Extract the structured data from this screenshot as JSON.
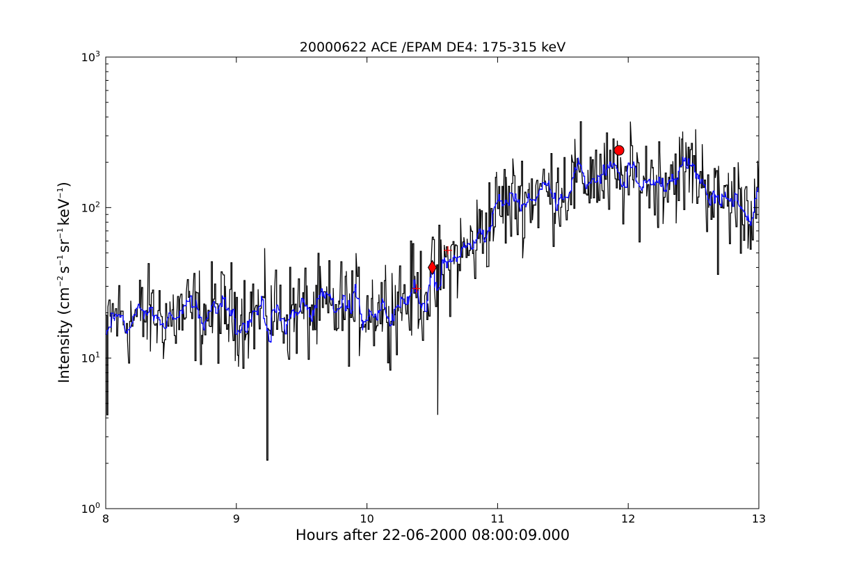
{
  "chart_data": {
    "type": "line",
    "title": "20000622 ACE /EPAM DE4: 175-315 keV",
    "xlabel": "Hours after 22-06-2000 08:00:09.000",
    "ylabel": {
      "prefix": "Intensity (cm",
      "exp1": "−2",
      "s": "s",
      "exp2": "−1",
      "sr": "sr",
      "exp3": "−1",
      "kev": "keV",
      "exp4": "−1",
      "suffix": ")"
    },
    "xlim": [
      8,
      13
    ],
    "ylim": [
      1,
      1000
    ],
    "yscale": "log",
    "grid": false,
    "x_ticks": [
      "8",
      "9",
      "10",
      "11",
      "12",
      "13"
    ],
    "y_ticks": [
      {
        "base": "10",
        "exp": "0"
      },
      {
        "base": "10",
        "exp": "1"
      },
      {
        "base": "10",
        "exp": "2"
      },
      {
        "base": "10",
        "exp": "3"
      }
    ],
    "trend_anchors": {
      "x": [
        8.0,
        8.5,
        9.0,
        9.5,
        10.0,
        10.3,
        10.5,
        10.6,
        10.8,
        11.0,
        11.2,
        11.5,
        11.7,
        12.0,
        12.2,
        12.5,
        12.7,
        13.0
      ],
      "y": [
        18,
        19,
        20,
        20,
        22,
        25,
        30,
        42,
        55,
        100,
        120,
        140,
        165,
        150,
        160,
        180,
        120,
        100
      ]
    },
    "series": [
      {
        "color": "#000000",
        "values_ref": "raw_noisy",
        "dips": [
          {
            "x": 8.01,
            "y": 4.2
          },
          {
            "x": 9.23,
            "y": 2.1
          },
          {
            "x": 10.54,
            "y": 4.2
          },
          {
            "x": 12.68,
            "y": 36
          }
        ]
      },
      {
        "color": "#0000ff",
        "values_ref": "smoothed"
      }
    ],
    "markers": [
      {
        "shape": "diamond",
        "x": 10.5,
        "y": 40,
        "color": "#ff0000"
      },
      {
        "shape": "circle",
        "x": 11.93,
        "y": 240,
        "color": "#ff0000"
      },
      {
        "shape": "plus",
        "x": 10.38,
        "y": 29,
        "color": "#ff0000"
      },
      {
        "shape": "plus",
        "x": 10.62,
        "y": 52,
        "color": "#ff0000"
      }
    ]
  }
}
